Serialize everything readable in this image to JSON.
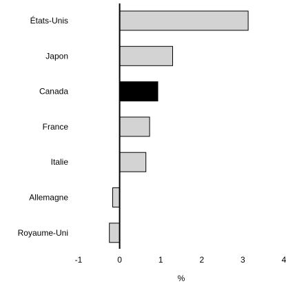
{
  "chart_data": {
    "type": "bar",
    "orientation": "horizontal",
    "categories": [
      "États-Unis",
      "Japon",
      "Canada",
      "France",
      "Italie",
      "Allemagne",
      "Royaume-Uni"
    ],
    "values": [
      3.13,
      1.29,
      0.93,
      0.73,
      0.64,
      -0.17,
      -0.25
    ],
    "highlight": "Canada",
    "xlabel": "%",
    "ylabel": "",
    "title": "",
    "xlim": [
      -1,
      4
    ],
    "xticks": [
      "-1",
      "0",
      "1",
      "2",
      "3",
      "4"
    ],
    "grid": false,
    "legend": "none",
    "colors": {
      "bar": "#d3d3d3",
      "highlight": "#000000",
      "outline": "#000000",
      "zero_line": "#000000"
    }
  }
}
